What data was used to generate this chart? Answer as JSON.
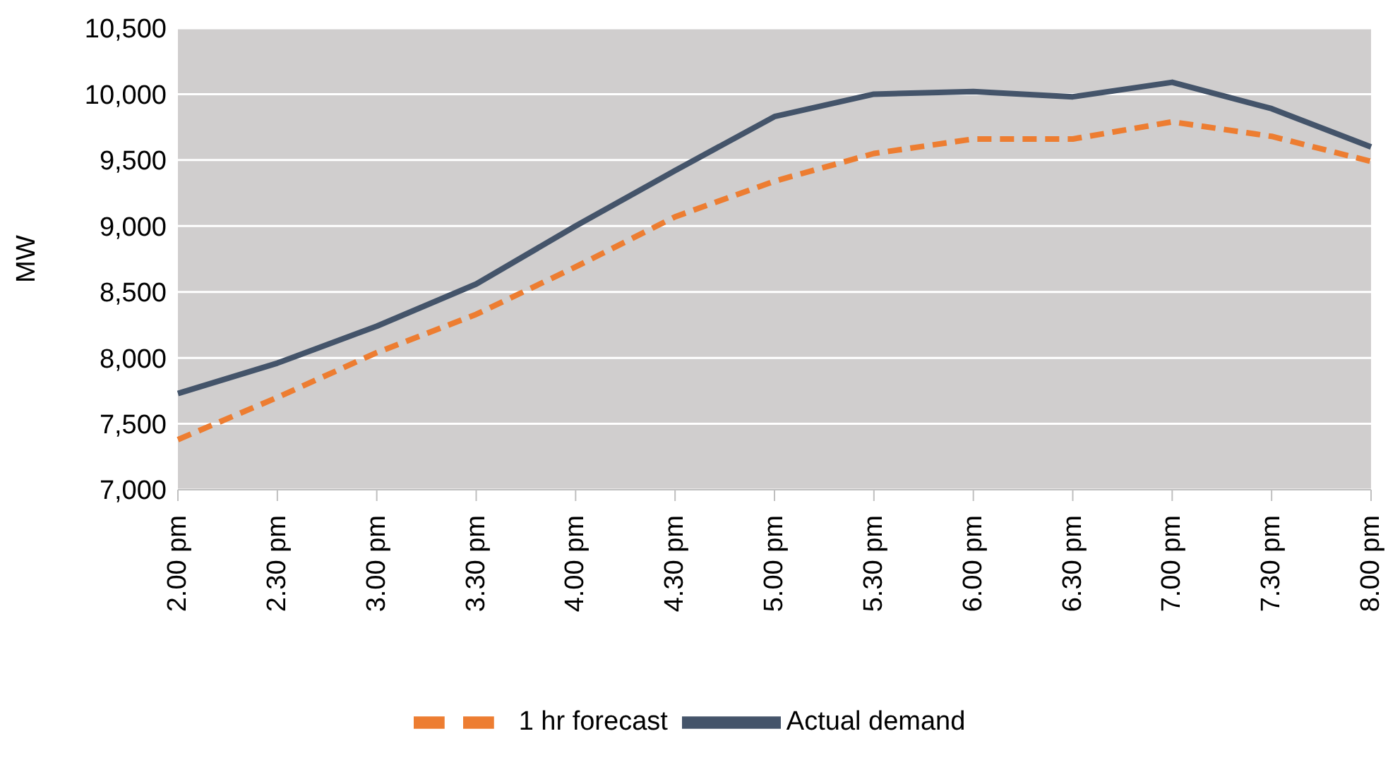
{
  "chart_data": {
    "type": "line",
    "ylabel": "MW",
    "categories": [
      "2.00 pm",
      "2.30 pm",
      "3.00 pm",
      "3.30 pm",
      "4.00 pm",
      "4.30 pm",
      "5.00 pm",
      "5.30 pm",
      "6.00 pm",
      "6.30 pm",
      "7.00 pm",
      "7.30 pm",
      "8.00 pm"
    ],
    "series": [
      {
        "name": "Actual demand",
        "color": "#44546a",
        "line_style": "solid",
        "values": [
          7730,
          7960,
          8240,
          8560,
          9000,
          9420,
          9830,
          10000,
          10020,
          9980,
          10090,
          9890,
          9600
        ]
      },
      {
        "name": "1 hr forecast",
        "color": "#ed7d31",
        "line_style": "dashed",
        "values": [
          7380,
          7700,
          8040,
          8330,
          8690,
          9070,
          9340,
          9550,
          9660,
          9660,
          9790,
          9680,
          9490
        ]
      }
    ],
    "ylim": [
      7000,
      10500
    ],
    "yticks": [
      {
        "value": 7000,
        "label": "7,000"
      },
      {
        "value": 7500,
        "label": "7,500"
      },
      {
        "value": 8000,
        "label": "8,000"
      },
      {
        "value": 8500,
        "label": "8,500"
      },
      {
        "value": 9000,
        "label": "9,000"
      },
      {
        "value": 9500,
        "label": "9,500"
      },
      {
        "value": 10000,
        "label": "10,000"
      },
      {
        "value": 10500,
        "label": "10,500"
      }
    ],
    "grid": "y",
    "legend": "bottom",
    "marker": "none"
  }
}
